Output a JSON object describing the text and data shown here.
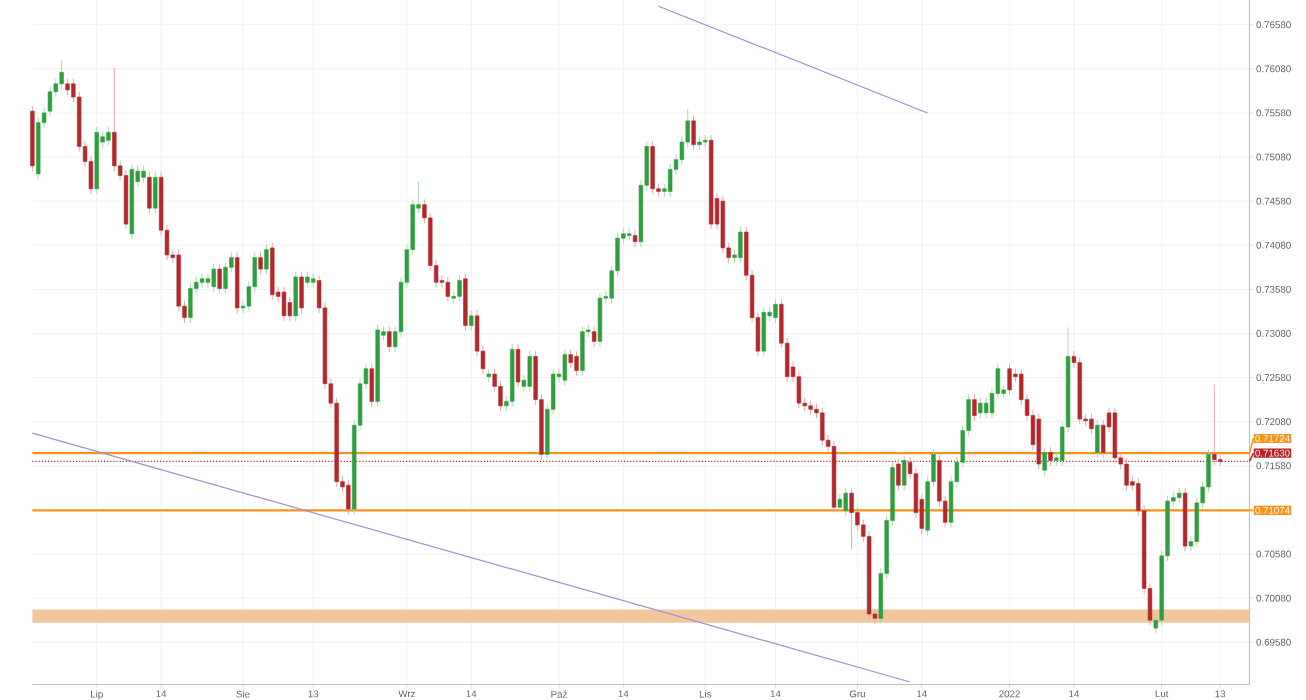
{
  "chart_data": {
    "type": "candlestick",
    "categories": [
      null,
      null,
      null,
      null,
      null,
      null,
      null,
      null,
      null,
      null,
      null,
      "Lip",
      null,
      null,
      null,
      null,
      null,
      null,
      null,
      null,
      null,
      null,
      "14",
      null,
      null,
      null,
      null,
      null,
      null,
      null,
      null,
      null,
      null,
      null,
      null,
      null,
      "Sie",
      null,
      null,
      null,
      null,
      null,
      null,
      null,
      null,
      null,
      null,
      null,
      "13",
      null,
      null,
      null,
      null,
      null,
      null,
      null,
      null,
      null,
      null,
      null,
      null,
      null,
      null,
      null,
      "Wrz",
      null,
      null,
      null,
      null,
      null,
      null,
      null,
      null,
      null,
      null,
      "14",
      null,
      null,
      null,
      null,
      null,
      null,
      null,
      null,
      null,
      null,
      null,
      null,
      null,
      null,
      "Paź",
      null,
      null,
      null,
      null,
      null,
      null,
      null,
      null,
      null,
      null,
      "14",
      null,
      null,
      null,
      null,
      null,
      null,
      null,
      null,
      null,
      null,
      null,
      null,
      null,
      "Lis",
      null,
      null,
      null,
      null,
      null,
      null,
      null,
      null,
      null,
      null,
      null,
      "14",
      null,
      null,
      null,
      null,
      null,
      null,
      null,
      null,
      null,
      null,
      null,
      null,
      null,
      "Gru",
      null,
      null,
      null,
      null,
      null,
      null,
      null,
      null,
      null,
      null,
      "14",
      null,
      null,
      null,
      null,
      null,
      null,
      null,
      null,
      null,
      null,
      null,
      null,
      null,
      null,
      "2022",
      null,
      null,
      null,
      null,
      null,
      null,
      null,
      null,
      null,
      null,
      "14",
      null,
      null,
      null,
      null,
      null,
      null,
      null,
      null,
      null,
      null,
      null,
      null,
      null,
      null,
      "Lut",
      null,
      null,
      null,
      null,
      null,
      null,
      null,
      null,
      null,
      "13"
    ],
    "ohlc": [
      [
        0.756,
        0.7566,
        0.7492,
        0.7498
      ],
      [
        0.7489,
        0.7553,
        0.7483,
        0.7547
      ],
      [
        0.7547,
        0.7564,
        0.7541,
        0.7558
      ],
      [
        0.756,
        0.7588,
        0.7554,
        0.7582
      ],
      [
        0.7582,
        0.7597,
        0.7576,
        0.7591
      ],
      [
        0.7591,
        0.7618,
        0.7585,
        0.7604
      ],
      [
        0.7591,
        0.7597,
        0.7578,
        0.7584
      ],
      [
        0.7591,
        0.7597,
        0.757,
        0.7576
      ],
      [
        0.7576,
        0.7582,
        0.7514,
        0.752
      ],
      [
        0.752,
        0.7526,
        0.7497,
        0.7503
      ],
      [
        0.7503,
        0.7509,
        0.7466,
        0.7472
      ],
      [
        0.7472,
        0.7542,
        0.7466,
        0.7536
      ],
      [
        0.7525,
        0.7537,
        0.7519,
        0.7531
      ],
      [
        0.7527,
        0.7542,
        0.7521,
        0.7536
      ],
      [
        0.7536,
        0.7609,
        0.7492,
        0.7498
      ],
      [
        0.7498,
        0.7504,
        0.7481,
        0.7487
      ],
      [
        0.7487,
        0.7493,
        0.7426,
        0.7432
      ],
      [
        0.7421,
        0.75,
        0.7415,
        0.7494
      ],
      [
        0.748,
        0.7498,
        0.7474,
        0.7492
      ],
      [
        0.7485,
        0.7498,
        0.7479,
        0.7492
      ],
      [
        0.7485,
        0.7491,
        0.7444,
        0.745
      ],
      [
        0.745,
        0.7491,
        0.7444,
        0.7485
      ],
      [
        0.7485,
        0.7491,
        0.7419,
        0.7425
      ],
      [
        0.7425,
        0.7431,
        0.7391,
        0.7397
      ],
      [
        0.7397,
        0.7403,
        0.7388,
        0.7394
      ],
      [
        0.7397,
        0.7403,
        0.7333,
        0.7339
      ],
      [
        0.7339,
        0.7345,
        0.732,
        0.7326
      ],
      [
        0.7326,
        0.7365,
        0.732,
        0.7359
      ],
      [
        0.7359,
        0.7372,
        0.7353,
        0.7366
      ],
      [
        0.7366,
        0.7376,
        0.736,
        0.737
      ],
      [
        0.7366,
        0.7376,
        0.736,
        0.737
      ],
      [
        0.7361,
        0.7387,
        0.7355,
        0.7381
      ],
      [
        0.7381,
        0.7387,
        0.7353,
        0.7359
      ],
      [
        0.7359,
        0.7389,
        0.7353,
        0.7383
      ],
      [
        0.7383,
        0.74,
        0.7377,
        0.7394
      ],
      [
        0.7394,
        0.74,
        0.7331,
        0.7337
      ],
      [
        0.7337,
        0.7345,
        0.7331,
        0.7339
      ],
      [
        0.7339,
        0.7367,
        0.7333,
        0.7361
      ],
      [
        0.7361,
        0.74,
        0.7355,
        0.7394
      ],
      [
        0.7394,
        0.74,
        0.7375,
        0.7381
      ],
      [
        0.7381,
        0.7409,
        0.7375,
        0.7403
      ],
      [
        0.7405,
        0.7411,
        0.7346,
        0.7352
      ],
      [
        0.7355,
        0.7361,
        0.7344,
        0.735
      ],
      [
        0.7355,
        0.7361,
        0.7322,
        0.7328
      ],
      [
        0.7343,
        0.7349,
        0.7322,
        0.7328
      ],
      [
        0.7328,
        0.7378,
        0.7322,
        0.7372
      ],
      [
        0.7372,
        0.7378,
        0.7331,
        0.7337
      ],
      [
        0.7366,
        0.7378,
        0.736,
        0.7372
      ],
      [
        0.7366,
        0.7376,
        0.736,
        0.737
      ],
      [
        0.7368,
        0.7374,
        0.7331,
        0.7337
      ],
      [
        0.7337,
        0.7343,
        0.7245,
        0.7251
      ],
      [
        0.7251,
        0.7257,
        0.7223,
        0.7229
      ],
      [
        0.7229,
        0.7235,
        0.7134,
        0.714
      ],
      [
        0.714,
        0.7146,
        0.7128,
        0.7134
      ],
      [
        0.7136,
        0.7142,
        0.7103,
        0.7109
      ],
      [
        0.7109,
        0.721,
        0.7103,
        0.7204
      ],
      [
        0.7204,
        0.7257,
        0.7198,
        0.7251
      ],
      [
        0.7251,
        0.7274,
        0.7245,
        0.7268
      ],
      [
        0.7268,
        0.7274,
        0.7225,
        0.7231
      ],
      [
        0.7231,
        0.7318,
        0.7225,
        0.7312
      ],
      [
        0.7306,
        0.7316,
        0.73,
        0.731
      ],
      [
        0.731,
        0.7316,
        0.7287,
        0.7293
      ],
      [
        0.7293,
        0.7316,
        0.7287,
        0.731
      ],
      [
        0.731,
        0.7372,
        0.7304,
        0.7366
      ],
      [
        0.7366,
        0.7409,
        0.736,
        0.7403
      ],
      [
        0.7403,
        0.746,
        0.7397,
        0.7454
      ],
      [
        0.745,
        0.748,
        0.7444,
        0.7454
      ],
      [
        0.7454,
        0.746,
        0.7433,
        0.7439
      ],
      [
        0.7439,
        0.7445,
        0.7379,
        0.7385
      ],
      [
        0.7385,
        0.7391,
        0.736,
        0.7366
      ],
      [
        0.7368,
        0.7374,
        0.736,
        0.7366
      ],
      [
        0.7366,
        0.7372,
        0.7344,
        0.735
      ],
      [
        0.7348,
        0.7356,
        0.7342,
        0.735
      ],
      [
        0.735,
        0.7374,
        0.7344,
        0.7368
      ],
      [
        0.737,
        0.7376,
        0.7311,
        0.7317
      ],
      [
        0.7317,
        0.7334,
        0.7311,
        0.7328
      ],
      [
        0.7328,
        0.7334,
        0.7282,
        0.7288
      ],
      [
        0.7288,
        0.7294,
        0.7262,
        0.7268
      ],
      [
        0.7259,
        0.7268,
        0.7253,
        0.7262
      ],
      [
        0.7262,
        0.7268,
        0.7242,
        0.7248
      ],
      [
        0.7248,
        0.7254,
        0.722,
        0.7226
      ],
      [
        0.7226,
        0.7237,
        0.722,
        0.7231
      ],
      [
        0.7231,
        0.7296,
        0.7225,
        0.729
      ],
      [
        0.729,
        0.7296,
        0.7247,
        0.7253
      ],
      [
        0.7248,
        0.7261,
        0.7242,
        0.7255
      ],
      [
        0.7248,
        0.7288,
        0.7242,
        0.7282
      ],
      [
        0.7282,
        0.7288,
        0.7227,
        0.7233
      ],
      [
        0.7233,
        0.7239,
        0.7165,
        0.7171
      ],
      [
        0.7171,
        0.7228,
        0.7165,
        0.7222
      ],
      [
        0.7222,
        0.7268,
        0.7216,
        0.7262
      ],
      [
        0.7259,
        0.7268,
        0.7253,
        0.7262
      ],
      [
        0.7255,
        0.729,
        0.7249,
        0.7284
      ],
      [
        0.7284,
        0.729,
        0.7269,
        0.7275
      ],
      [
        0.7282,
        0.7288,
        0.726,
        0.7266
      ],
      [
        0.7266,
        0.7316,
        0.726,
        0.731
      ],
      [
        0.731,
        0.7318,
        0.7304,
        0.7312
      ],
      [
        0.731,
        0.7316,
        0.7293,
        0.7299
      ],
      [
        0.7299,
        0.7354,
        0.7293,
        0.7348
      ],
      [
        0.7348,
        0.7356,
        0.7342,
        0.735
      ],
      [
        0.7348,
        0.7385,
        0.7342,
        0.7379
      ],
      [
        0.7379,
        0.7422,
        0.7373,
        0.7416
      ],
      [
        0.7416,
        0.7427,
        0.741,
        0.7421
      ],
      [
        0.7419,
        0.7427,
        0.7413,
        0.7421
      ],
      [
        0.7419,
        0.7425,
        0.7406,
        0.7412
      ],
      [
        0.7412,
        0.7482,
        0.7406,
        0.7476
      ],
      [
        0.7476,
        0.7526,
        0.747,
        0.752
      ],
      [
        0.752,
        0.7526,
        0.7466,
        0.7472
      ],
      [
        0.7472,
        0.7478,
        0.7463,
        0.7469
      ],
      [
        0.7469,
        0.7478,
        0.7463,
        0.7472
      ],
      [
        0.7469,
        0.75,
        0.7463,
        0.7494
      ],
      [
        0.7494,
        0.7511,
        0.7488,
        0.7505
      ],
      [
        0.7505,
        0.7531,
        0.7499,
        0.7525
      ],
      [
        0.7525,
        0.7562,
        0.7519,
        0.7549
      ],
      [
        0.7549,
        0.7555,
        0.7516,
        0.7522
      ],
      [
        0.7522,
        0.7531,
        0.7516,
        0.7525
      ],
      [
        0.7525,
        0.7533,
        0.7519,
        0.7527
      ],
      [
        0.7527,
        0.7533,
        0.7426,
        0.7432
      ],
      [
        0.7461,
        0.7467,
        0.7426,
        0.7432
      ],
      [
        0.7458,
        0.7464,
        0.7399,
        0.7405
      ],
      [
        0.7405,
        0.7411,
        0.7388,
        0.7394
      ],
      [
        0.7394,
        0.7403,
        0.7388,
        0.7397
      ],
      [
        0.7394,
        0.7429,
        0.7388,
        0.7423
      ],
      [
        0.7423,
        0.7429,
        0.7368,
        0.7374
      ],
      [
        0.7374,
        0.738,
        0.732,
        0.7326
      ],
      [
        0.7326,
        0.7332,
        0.7282,
        0.7288
      ],
      [
        0.7288,
        0.7338,
        0.7282,
        0.7332
      ],
      [
        0.7328,
        0.7338,
        0.7322,
        0.7332
      ],
      [
        0.7326,
        0.7347,
        0.732,
        0.7341
      ],
      [
        0.7341,
        0.7347,
        0.7291,
        0.7297
      ],
      [
        0.7297,
        0.7303,
        0.7253,
        0.7259
      ],
      [
        0.727,
        0.7276,
        0.7253,
        0.7259
      ],
      [
        0.7259,
        0.7265,
        0.7223,
        0.7229
      ],
      [
        0.7229,
        0.7235,
        0.722,
        0.7226
      ],
      [
        0.7226,
        0.7232,
        0.7216,
        0.7222
      ],
      [
        0.7222,
        0.7228,
        0.7212,
        0.7218
      ],
      [
        0.7218,
        0.7224,
        0.7181,
        0.7187
      ],
      [
        0.7187,
        0.7193,
        0.7174,
        0.718
      ],
      [
        0.718,
        0.7186,
        0.7105,
        0.7111
      ],
      [
        0.7111,
        0.7126,
        0.7105,
        0.712
      ],
      [
        0.7107,
        0.7133,
        0.7101,
        0.7127
      ],
      [
        0.7127,
        0.7133,
        0.7063,
        0.7105
      ],
      [
        0.7105,
        0.7111,
        0.7085,
        0.7091
      ],
      [
        0.7091,
        0.7097,
        0.7072,
        0.7078
      ],
      [
        0.7078,
        0.7084,
        0.6984,
        0.699
      ],
      [
        0.699,
        0.6996,
        0.6979,
        0.6985
      ],
      [
        0.6985,
        0.7042,
        0.6979,
        0.7036
      ],
      [
        0.7036,
        0.7102,
        0.703,
        0.7096
      ],
      [
        0.7096,
        0.7162,
        0.709,
        0.7156
      ],
      [
        0.716,
        0.7166,
        0.713,
        0.7136
      ],
      [
        0.7136,
        0.717,
        0.713,
        0.7164
      ],
      [
        0.7162,
        0.7168,
        0.7143,
        0.7149
      ],
      [
        0.7149,
        0.7155,
        0.7099,
        0.7105
      ],
      [
        0.712,
        0.7126,
        0.7081,
        0.7087
      ],
      [
        0.7085,
        0.7146,
        0.7079,
        0.714
      ],
      [
        0.714,
        0.7177,
        0.7134,
        0.7171
      ],
      [
        0.7164,
        0.717,
        0.7112,
        0.7118
      ],
      [
        0.7118,
        0.7124,
        0.7088,
        0.7094
      ],
      [
        0.7094,
        0.7146,
        0.7088,
        0.714
      ],
      [
        0.714,
        0.7168,
        0.7134,
        0.7162
      ],
      [
        0.7162,
        0.7204,
        0.7156,
        0.7198
      ],
      [
        0.7198,
        0.7239,
        0.7192,
        0.7233
      ],
      [
        0.7233,
        0.7239,
        0.7209,
        0.7215
      ],
      [
        0.7218,
        0.7235,
        0.7212,
        0.7229
      ],
      [
        0.7218,
        0.7235,
        0.7212,
        0.7229
      ],
      [
        0.7218,
        0.7246,
        0.7212,
        0.724
      ],
      [
        0.724,
        0.7274,
        0.7234,
        0.7268
      ],
      [
        0.724,
        0.725,
        0.7234,
        0.7244
      ],
      [
        0.7268,
        0.7274,
        0.7238,
        0.7244
      ],
      [
        0.7262,
        0.7268,
        0.7253,
        0.7259
      ],
      [
        0.7262,
        0.7268,
        0.7227,
        0.7233
      ],
      [
        0.7233,
        0.7239,
        0.7209,
        0.7215
      ],
      [
        0.7215,
        0.7221,
        0.7176,
        0.7182
      ],
      [
        0.7211,
        0.7217,
        0.7154,
        0.716
      ],
      [
        0.7153,
        0.7179,
        0.7147,
        0.7173
      ],
      [
        0.7173,
        0.7179,
        0.7158,
        0.7164
      ],
      [
        0.7164,
        0.7173,
        0.7158,
        0.7167
      ],
      [
        0.7164,
        0.7208,
        0.7158,
        0.7202
      ],
      [
        0.7202,
        0.7315,
        0.7196,
        0.7282
      ],
      [
        0.7282,
        0.7288,
        0.7269,
        0.7275
      ],
      [
        0.7275,
        0.7281,
        0.7205,
        0.7211
      ],
      [
        0.7211,
        0.7217,
        0.7203,
        0.7209
      ],
      [
        0.7211,
        0.7217,
        0.7194,
        0.72
      ],
      [
        0.7173,
        0.721,
        0.7167,
        0.7204
      ],
      [
        0.7204,
        0.721,
        0.7167,
        0.7173
      ],
      [
        0.7218,
        0.7224,
        0.7196,
        0.7202
      ],
      [
        0.7218,
        0.7224,
        0.7161,
        0.7167
      ],
      [
        0.7167,
        0.7173,
        0.7154,
        0.716
      ],
      [
        0.716,
        0.7166,
        0.713,
        0.7136
      ],
      [
        0.714,
        0.7146,
        0.713,
        0.7136
      ],
      [
        0.7138,
        0.7144,
        0.7101,
        0.7107
      ],
      [
        0.7107,
        0.7113,
        0.7013,
        0.7019
      ],
      [
        0.7019,
        0.7025,
        0.6977,
        0.6983
      ],
      [
        0.6974,
        0.6989,
        0.6968,
        0.6983
      ],
      [
        0.6983,
        0.7062,
        0.6977,
        0.7056
      ],
      [
        0.7056,
        0.7124,
        0.705,
        0.7118
      ],
      [
        0.7118,
        0.7128,
        0.7112,
        0.7122
      ],
      [
        0.7122,
        0.7133,
        0.7116,
        0.7127
      ],
      [
        0.7127,
        0.7133,
        0.7061,
        0.7067
      ],
      [
        0.7067,
        0.7078,
        0.7061,
        0.7072
      ],
      [
        0.7072,
        0.7122,
        0.7066,
        0.7116
      ],
      [
        0.7116,
        0.714,
        0.711,
        0.7134
      ],
      [
        0.7134,
        0.7177,
        0.7128,
        0.7171
      ],
      [
        0.7171,
        0.725,
        0.7159,
        0.7165
      ],
      [
        0.7165,
        0.717,
        0.7158,
        0.7163
      ]
    ],
    "colors": [
      "#b2282d",
      "#2e9e3e",
      "#2e9e3e",
      "#2e9e3e",
      "#2e9e3e",
      "#2e9e3e",
      "#b2282d",
      "#b2282d",
      "#b2282d",
      "#b2282d",
      "#b2282d",
      "#2e9e3e",
      "#2e9e3e",
      "#2e9e3e",
      "#b2282d",
      "#b2282d",
      "#b2282d",
      "#2e9e3e",
      "#2e9e3e",
      "#2e9e3e",
      "#b2282d",
      "#2e9e3e",
      "#b2282d",
      "#b2282d",
      "#b2282d",
      "#b2282d",
      "#b2282d",
      "#2e9e3e",
      "#2e9e3e",
      "#2e9e3e",
      "#2e9e3e",
      "#2e9e3e",
      "#b2282d",
      "#2e9e3e",
      "#2e9e3e",
      "#b2282d",
      "#2e9e3e",
      "#2e9e3e",
      "#2e9e3e",
      "#b2282d",
      "#2e9e3e",
      "#b2282d",
      "#b2282d",
      "#b2282d",
      "#b2282d",
      "#2e9e3e",
      "#b2282d",
      "#2e9e3e",
      "#2e9e3e",
      "#b2282d",
      "#b2282d",
      "#b2282d",
      "#b2282d",
      "#b2282d",
      "#b2282d",
      "#2e9e3e",
      "#2e9e3e",
      "#2e9e3e",
      "#b2282d",
      "#2e9e3e",
      "#2e9e3e",
      "#b2282d",
      "#2e9e3e",
      "#2e9e3e",
      "#2e9e3e",
      "#2e9e3e",
      "#2e9e3e",
      "#b2282d",
      "#b2282d",
      "#b2282d",
      "#b2282d",
      "#b2282d",
      "#2e9e3e",
      "#2e9e3e",
      "#b2282d",
      "#2e9e3e",
      "#b2282d",
      "#b2282d",
      "#2e9e3e",
      "#b2282d",
      "#b2282d",
      "#2e9e3e",
      "#2e9e3e",
      "#b2282d",
      "#2e9e3e",
      "#2e9e3e",
      "#b2282d",
      "#b2282d",
      "#2e9e3e",
      "#2e9e3e",
      "#2e9e3e",
      "#2e9e3e",
      "#b2282d",
      "#b2282d",
      "#2e9e3e",
      "#2e9e3e",
      "#b2282d",
      "#2e9e3e",
      "#2e9e3e",
      "#2e9e3e",
      "#2e9e3e",
      "#2e9e3e",
      "#2e9e3e",
      "#b2282d",
      "#2e9e3e",
      "#2e9e3e",
      "#b2282d",
      "#b2282d",
      "#2e9e3e",
      "#2e9e3e",
      "#2e9e3e",
      "#2e9e3e",
      "#2e9e3e",
      "#b2282d",
      "#2e9e3e",
      "#2e9e3e",
      "#b2282d",
      "#b2282d",
      "#b2282d",
      "#b2282d",
      "#2e9e3e",
      "#2e9e3e",
      "#b2282d",
      "#b2282d",
      "#b2282d",
      "#2e9e3e",
      "#2e9e3e",
      "#2e9e3e",
      "#b2282d",
      "#b2282d",
      "#b2282d",
      "#b2282d",
      "#b2282d",
      "#b2282d",
      "#b2282d",
      "#b2282d",
      "#b2282d",
      "#b2282d",
      "#2e9e3e",
      "#2e9e3e",
      "#b2282d",
      "#b2282d",
      "#b2282d",
      "#b2282d",
      "#b2282d",
      "#2e9e3e",
      "#2e9e3e",
      "#2e9e3e",
      "#b2282d",
      "#2e9e3e",
      "#b2282d",
      "#b2282d",
      "#b2282d",
      "#2e9e3e",
      "#2e9e3e",
      "#b2282d",
      "#b2282d",
      "#2e9e3e",
      "#2e9e3e",
      "#2e9e3e",
      "#2e9e3e",
      "#b2282d",
      "#2e9e3e",
      "#2e9e3e",
      "#2e9e3e",
      "#2e9e3e",
      "#2e9e3e",
      "#b2282d",
      "#b2282d",
      "#b2282d",
      "#b2282d",
      "#b2282d",
      "#b2282d",
      "#2e9e3e",
      "#b2282d",
      "#2e9e3e",
      "#2e9e3e",
      "#2e9e3e",
      "#b2282d",
      "#b2282d",
      "#b2282d",
      "#b2282d",
      "#2e9e3e",
      "#b2282d",
      "#b2282d",
      "#b2282d",
      "#b2282d",
      "#b2282d",
      "#b2282d",
      "#b2282d",
      "#b2282d",
      "#b2282d",
      "#2e9e3e",
      "#2e9e3e",
      "#2e9e3e",
      "#2e9e3e",
      "#2e9e3e",
      "#b2282d",
      "#2e9e3e",
      "#2e9e3e",
      "#2e9e3e",
      "#2e9e3e",
      "#b2282d",
      "#b2282d"
    ],
    "series": [
      {
        "type": "line",
        "color": "#a68bd6",
        "values": [
          null,
          null,
          null,
          null,
          null,
          null,
          null,
          null,
          null,
          null,
          null,
          null,
          null,
          null,
          null,
          null,
          null,
          null,
          null,
          null,
          null,
          null,
          null,
          null,
          null,
          null,
          null,
          null,
          null,
          null,
          null,
          null,
          null,
          null,
          null,
          null,
          null,
          null,
          null,
          null,
          null,
          null,
          null,
          null,
          null,
          null,
          null,
          null,
          null,
          null,
          null,
          null,
          null,
          null,
          null,
          null,
          null,
          null,
          null,
          null,
          null,
          null,
          null,
          null,
          null,
          null,
          null,
          null,
          null,
          null,
          null,
          null,
          null,
          null,
          null,
          null,
          null,
          null,
          null,
          null,
          null,
          null,
          null,
          null,
          null,
          null,
          null,
          null,
          null,
          null,
          null,
          null,
          null,
          null,
          null,
          null,
          null,
          null,
          null,
          null,
          null,
          null,
          null,
          null,
          null,
          null,
          null,
          0.7679,
          null,
          null,
          null,
          null,
          null,
          null,
          null,
          null,
          null,
          null,
          null,
          null,
          null,
          null,
          null,
          null,
          null,
          null,
          null,
          null,
          null,
          null,
          null,
          null,
          null,
          null,
          null,
          null,
          null,
          null,
          null,
          null,
          null,
          null,
          null,
          null,
          null,
          null,
          null,
          null,
          null,
          null,
          null,
          null,
          null,
          0.7558,
          null,
          null,
          null,
          null,
          null,
          null,
          null,
          null,
          null,
          null,
          null,
          null,
          null,
          null,
          null,
          null,
          null,
          null,
          null,
          null,
          null,
          null,
          null,
          null,
          null,
          null,
          null,
          null,
          null,
          null,
          null,
          null,
          null,
          null,
          null,
          null,
          null,
          null,
          null,
          null,
          null,
          null,
          null,
          null,
          null,
          null,
          null,
          null,
          null,
          null
        ]
      },
      {
        "type": "line",
        "color": "#a68bd6",
        "values": [
          0.7195,
          null,
          null,
          null,
          null,
          null,
          null,
          null,
          null,
          null,
          null,
          null,
          null,
          null,
          null,
          null,
          null,
          null,
          null,
          null,
          null,
          null,
          null,
          null,
          null,
          null,
          null,
          null,
          null,
          null,
          null,
          null,
          null,
          null,
          null,
          null,
          null,
          null,
          null,
          null,
          null,
          null,
          null,
          null,
          null,
          null,
          null,
          null,
          null,
          null,
          null,
          null,
          null,
          null,
          null,
          null,
          null,
          null,
          null,
          null,
          null,
          null,
          null,
          null,
          null,
          null,
          null,
          null,
          null,
          null,
          null,
          null,
          null,
          null,
          null,
          null,
          null,
          null,
          null,
          null,
          null,
          null,
          null,
          null,
          null,
          null,
          null,
          null,
          null,
          null,
          null,
          null,
          null,
          null,
          null,
          null,
          null,
          null,
          null,
          null,
          null,
          null,
          null,
          null,
          null,
          null,
          null,
          null,
          null,
          null,
          null,
          null,
          null,
          null,
          null,
          null,
          null,
          null,
          null,
          null,
          null,
          null,
          null,
          null,
          null,
          null,
          null,
          null,
          null,
          null,
          null,
          null,
          null,
          null,
          null,
          null,
          null,
          null,
          null,
          null,
          null,
          null,
          null,
          null,
          null,
          null,
          null,
          null,
          null,
          null,
          0.6913,
          null,
          null,
          null,
          null,
          null,
          null,
          null,
          null,
          null,
          null,
          null,
          null,
          null,
          null,
          null,
          null,
          null,
          null,
          null,
          null,
          null,
          null,
          null,
          null,
          null,
          null,
          null,
          null,
          null,
          null,
          null,
          null,
          null,
          null,
          null,
          null,
          null,
          null,
          null,
          null,
          null,
          null,
          null,
          null,
          null,
          null,
          null,
          null,
          null,
          null,
          null,
          null,
          null
        ]
      }
    ],
    "ylim": [
      0.691,
      0.7686
    ],
    "yticks": [
      {
        "value": 0.6958,
        "label": "0.69580"
      },
      {
        "value": 0.7008,
        "label": "0.70080"
      },
      {
        "value": 0.7058,
        "label": "0.70580"
      },
      {
        "value": 0.7108,
        "label": null
      },
      {
        "value": 0.7158,
        "label": "0.71580"
      },
      {
        "value": 0.7208,
        "label": "0.72080"
      },
      {
        "value": 0.7258,
        "label": "0.72580"
      },
      {
        "value": 0.7308,
        "label": "0.73080"
      },
      {
        "value": 0.7358,
        "label": "0.73580"
      },
      {
        "value": 0.7408,
        "label": "0.74080"
      },
      {
        "value": 0.7458,
        "label": "0.74580"
      },
      {
        "value": 0.7508,
        "label": "0.75080"
      },
      {
        "value": 0.7558,
        "label": "0.75580"
      },
      {
        "value": 0.7608,
        "label": "0.76080"
      },
      {
        "value": 0.7658,
        "label": "0.76580"
      }
    ],
    "grid": true,
    "ref_lines": [
      {
        "axis": "y",
        "value": 0.71724,
        "label": "0.71724",
        "color": "#f7931e"
      },
      {
        "axis": "y",
        "value": 0.7163,
        "label": "0.71630",
        "color": "#b5262b",
        "line_style": "dotted"
      },
      {
        "axis": "y",
        "value": 0.71074,
        "label": "0.71074",
        "color": "#f7931e"
      }
    ],
    "bands": [
      {
        "axis": "y",
        "from": 0.698,
        "to": 0.6995,
        "color": "#f3c79c"
      }
    ]
  }
}
